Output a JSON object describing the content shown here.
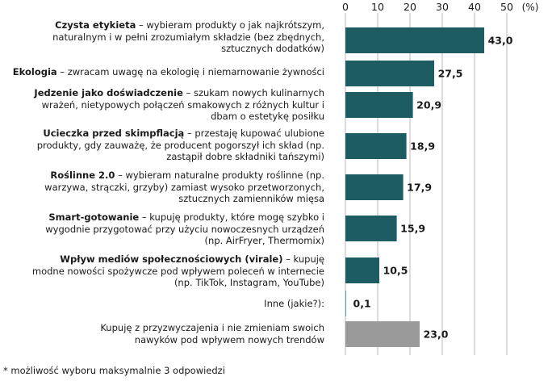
{
  "chart_data": {
    "type": "bar",
    "orientation": "horizontal",
    "unit": "(%)",
    "x_ticks": [
      0,
      10,
      20,
      30,
      40,
      50
    ],
    "xlim": [
      0,
      50
    ],
    "grid": true,
    "categories": [
      {
        "bold": "Czysta etykieta",
        "rest": " – wybieram produkty o jak najkrótszym, naturalnym i w pełni zrozumiałym składzie (bez zbędnych, sztucznych dodatków)",
        "value": 43.0,
        "value_label": "43,0",
        "color": "#1e5c63"
      },
      {
        "bold": "Ekologia",
        "rest": " – zwracam uwagę na ekologię i niemarnowanie żywności",
        "value": 27.5,
        "value_label": "27,5",
        "color": "#1e5c63"
      },
      {
        "bold": "Jedzenie jako doświadczenie",
        "rest": " – szukam nowych kulinarnych wrażeń, nietypowych połączeń smakowych z różnych kultur i dbam o estetykę posiłku",
        "value": 20.9,
        "value_label": "20,9",
        "color": "#1e5c63"
      },
      {
        "bold": "Ucieczka przed skimpflacją",
        "rest": " – przestaję kupować ulubione produkty, gdy zauważę, że producent pogorszył ich skład (np. zastąpił dobre składniki tańszymi)",
        "value": 18.9,
        "value_label": "18,9",
        "color": "#1e5c63"
      },
      {
        "bold": "Roślinne 2.0",
        "rest": " – wybieram naturalne produkty roślinne (np. warzywa, strączki, grzyby) zamiast wysoko przetworzonych, sztucznych zamienników mięsa",
        "value": 17.9,
        "value_label": "17,9",
        "color": "#1e5c63"
      },
      {
        "bold": "Smart-gotowanie",
        "rest": " – kupuję produkty, które mogę szybko i wygodnie przygotować przy użyciu nowoczesnych urządzeń (np. AirFryer, Thermomix)",
        "value": 15.9,
        "value_label": "15,9",
        "color": "#1e5c63"
      },
      {
        "bold": "Wpływ mediów społecznościowych (virale)",
        "rest": " – kupuję modne nowości spożywcze pod wpływem poleceń w internecie (np. TikTok, Instagram, YouTube)",
        "value": 10.5,
        "value_label": "10,5",
        "color": "#1e5c63"
      },
      {
        "bold": "",
        "rest": "Inne (jakie?):",
        "value": 0.1,
        "value_label": "0,1",
        "color": "#1e5c63"
      },
      {
        "bold": "",
        "rest": "Kupuję z przyzwyczajenia i nie zmieniam swoich nawyków pod wpływem nowych trendów",
        "value": 23.0,
        "value_label": "23,0",
        "color": "#9a9a9a"
      }
    ],
    "footnote": "* możliwość wyboru maksymalnie 3 odpowiedzi"
  }
}
